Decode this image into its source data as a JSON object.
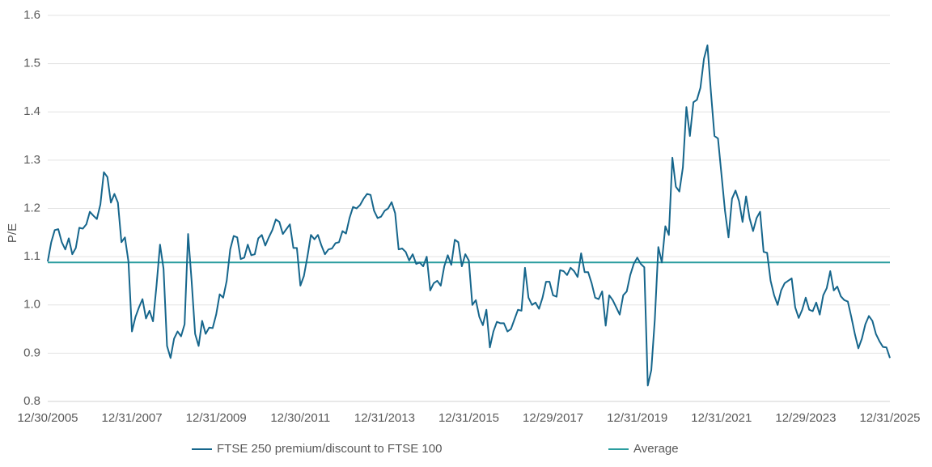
{
  "chart_data": {
    "type": "line",
    "y_label": "P/E",
    "categories": [
      "12/30/2005",
      null,
      null,
      null,
      null,
      null,
      null,
      null,
      null,
      null,
      null,
      null,
      null,
      null,
      null,
      null,
      null,
      null,
      null,
      null,
      null,
      null,
      null,
      null,
      "12/31/2007",
      null,
      null,
      null,
      null,
      null,
      null,
      null,
      null,
      null,
      null,
      null,
      null,
      null,
      null,
      null,
      null,
      null,
      null,
      null,
      null,
      null,
      null,
      null,
      "12/31/2009",
      null,
      null,
      null,
      null,
      null,
      null,
      null,
      null,
      null,
      null,
      null,
      null,
      null,
      null,
      null,
      null,
      null,
      null,
      null,
      null,
      null,
      null,
      null,
      "12/30/2011",
      null,
      null,
      null,
      null,
      null,
      null,
      null,
      null,
      null,
      null,
      null,
      null,
      null,
      null,
      null,
      null,
      null,
      null,
      null,
      null,
      null,
      null,
      null,
      "12/31/2013",
      null,
      null,
      null,
      null,
      null,
      null,
      null,
      null,
      null,
      null,
      null,
      null,
      null,
      null,
      null,
      null,
      null,
      null,
      null,
      null,
      null,
      null,
      null,
      "12/31/2015",
      null,
      null,
      null,
      null,
      null,
      null,
      null,
      null,
      null,
      null,
      null,
      null,
      null,
      null,
      null,
      null,
      null,
      null,
      null,
      null,
      null,
      null,
      null,
      "12/29/2017",
      null,
      null,
      null,
      null,
      null,
      null,
      null,
      null,
      null,
      null,
      null,
      null,
      null,
      null,
      null,
      null,
      null,
      null,
      null,
      null,
      null,
      null,
      null,
      "12/31/2019",
      null,
      null,
      null,
      null,
      null,
      null,
      null,
      null,
      null,
      null,
      null,
      null,
      null,
      null,
      null,
      null,
      null,
      null,
      null,
      null,
      null,
      null,
      null,
      "12/31/2021",
      null,
      null,
      null,
      null,
      null,
      null,
      null,
      null,
      null,
      null,
      null,
      null,
      null,
      null,
      null,
      null,
      null,
      null,
      null,
      null,
      null,
      null,
      null,
      "12/29/2023",
      null,
      null,
      null,
      null,
      null,
      null,
      null,
      null,
      null,
      null,
      null,
      null,
      null,
      null,
      null,
      null,
      null,
      null,
      null,
      null,
      null,
      null,
      null,
      "12/31/2025"
    ],
    "series": [
      {
        "name": "FTSE 250 premium/discount to FTSE 100",
        "color": "#16668c",
        "values": [
          1.09,
          1.13,
          1.155,
          1.157,
          1.13,
          1.115,
          1.138,
          1.105,
          1.118,
          1.16,
          1.158,
          1.167,
          1.193,
          1.185,
          1.178,
          1.208,
          1.275,
          1.265,
          1.212,
          1.23,
          1.212,
          1.13,
          1.14,
          1.09,
          0.945,
          0.975,
          0.995,
          1.012,
          0.972,
          0.988,
          0.966,
          1.04,
          1.125,
          1.075,
          0.915,
          0.89,
          0.93,
          0.945,
          0.935,
          0.96,
          1.147,
          1.05,
          0.94,
          0.915,
          0.967,
          0.94,
          0.953,
          0.952,
          0.98,
          1.022,
          1.015,
          1.05,
          1.115,
          1.143,
          1.14,
          1.095,
          1.098,
          1.125,
          1.103,
          1.105,
          1.138,
          1.145,
          1.123,
          1.14,
          1.155,
          1.177,
          1.172,
          1.147,
          1.157,
          1.167,
          1.118,
          1.118,
          1.04,
          1.06,
          1.1,
          1.145,
          1.136,
          1.145,
          1.123,
          1.105,
          1.115,
          1.117,
          1.128,
          1.13,
          1.153,
          1.148,
          1.18,
          1.203,
          1.2,
          1.207,
          1.22,
          1.23,
          1.228,
          1.195,
          1.18,
          1.183,
          1.195,
          1.2,
          1.213,
          1.19,
          1.115,
          1.117,
          1.11,
          1.092,
          1.105,
          1.085,
          1.088,
          1.08,
          1.1,
          1.03,
          1.045,
          1.05,
          1.04,
          1.08,
          1.103,
          1.083,
          1.135,
          1.13,
          1.08,
          1.105,
          1.092,
          1.0,
          1.01,
          0.975,
          0.958,
          0.99,
          0.912,
          0.945,
          0.965,
          0.962,
          0.962,
          0.945,
          0.95,
          0.97,
          0.99,
          0.988,
          1.077,
          1.015,
          1.0,
          1.005,
          0.992,
          1.015,
          1.048,
          1.048,
          1.02,
          1.017,
          1.072,
          1.07,
          1.062,
          1.077,
          1.07,
          1.058,
          1.107,
          1.068,
          1.068,
          1.045,
          1.015,
          1.012,
          1.028,
          0.957,
          1.02,
          1.01,
          0.995,
          0.98,
          1.02,
          1.028,
          1.062,
          1.085,
          1.098,
          1.085,
          1.078,
          0.833,
          0.865,
          0.97,
          1.12,
          1.088,
          1.163,
          1.145,
          1.305,
          1.245,
          1.235,
          1.285,
          1.41,
          1.35,
          1.42,
          1.425,
          1.45,
          1.51,
          1.538,
          1.44,
          1.35,
          1.345,
          1.27,
          1.195,
          1.14,
          1.22,
          1.237,
          1.215,
          1.172,
          1.225,
          1.18,
          1.153,
          1.18,
          1.193,
          1.11,
          1.108,
          1.05,
          1.02,
          1.0,
          1.03,
          1.045,
          1.05,
          1.055,
          0.995,
          0.973,
          0.99,
          1.015,
          0.99,
          0.987,
          1.005,
          0.98,
          1.02,
          1.035,
          1.07,
          1.03,
          1.038,
          1.018,
          1.01,
          1.007,
          0.975,
          0.94,
          0.91,
          0.93,
          0.96,
          0.977,
          0.967,
          0.94,
          0.925,
          0.913,
          0.912,
          0.89
        ]
      }
    ],
    "reference_lines": [
      {
        "name": "Average",
        "value": 1.088,
        "color": "#2a9d9f"
      }
    ],
    "ylim": [
      0.8,
      1.6
    ],
    "yticks": [
      0.8,
      0.9,
      {
        "value": 1,
        "label": "1.0"
      },
      1.1,
      1.2,
      1.3,
      1.4,
      1.5,
      1.6
    ],
    "grid": true
  }
}
